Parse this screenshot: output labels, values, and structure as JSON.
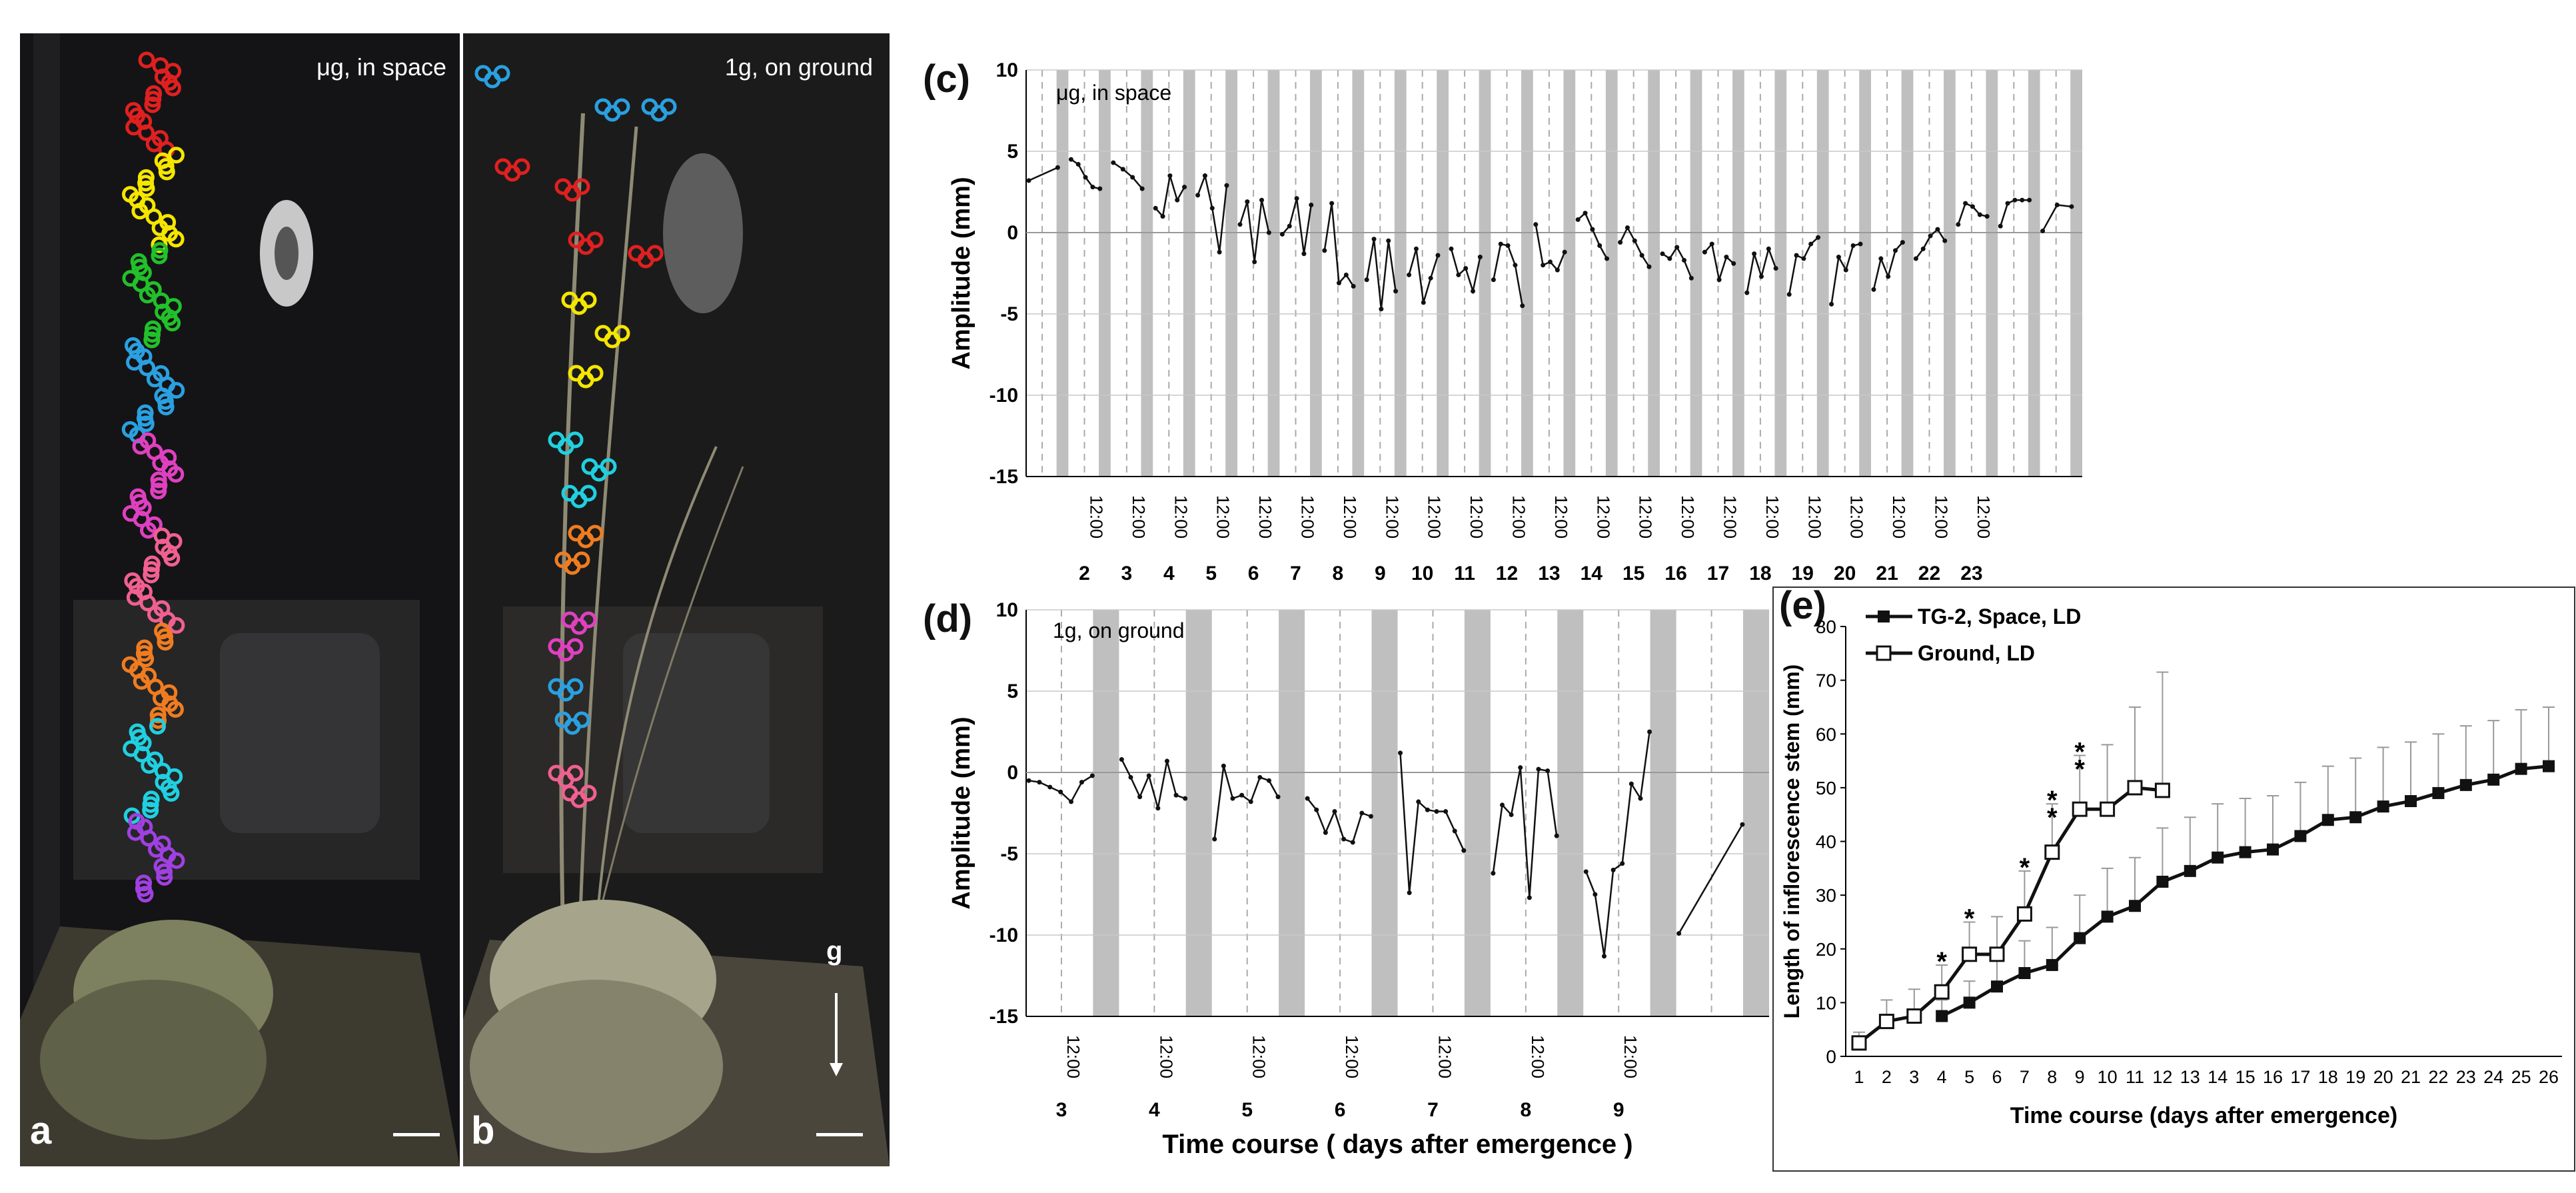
{
  "panels": {
    "a": {
      "letter": "a",
      "label": "μg, in space"
    },
    "b": {
      "letter": "b",
      "label": "1g, on ground",
      "gravity_label": "g"
    },
    "c": {
      "letter": "(c)",
      "label": "μg, in space"
    },
    "d": {
      "letter": "(d)",
      "label": "1g, on ground"
    },
    "e": {
      "letter": "(e)"
    }
  },
  "chart_data": [
    {
      "id": "c",
      "type": "line",
      "title": "",
      "ylabel": "Amplitude (mm)",
      "xlabel": "",
      "ylim": [
        -15,
        10
      ],
      "yticks": [
        10,
        5,
        0,
        -5,
        -10,
        -15
      ],
      "day_labels": [
        "2",
        "3",
        "4",
        "5",
        "6",
        "7",
        "8",
        "9",
        "10",
        "11",
        "12",
        "13",
        "14",
        "15",
        "16",
        "17",
        "18",
        "19",
        "20",
        "21",
        "22",
        "23"
      ],
      "time_label": "12:00",
      "dark_bands": true,
      "series": [
        {
          "values": [
            [
              3.2,
              4.0
            ],
            [
              4.5,
              4.2,
              3.4,
              2.8,
              2.7
            ],
            [
              4.3,
              3.9,
              3.4,
              2.7
            ],
            [
              1.5,
              1.0,
              3.5,
              2.0,
              2.8
            ],
            [
              2.3,
              3.5,
              1.5,
              -1.2,
              2.9
            ],
            [
              0.5,
              1.9,
              -1.8,
              2.0,
              0.0
            ],
            [
              -0.1,
              0.4,
              2.1,
              -1.3,
              1.7
            ],
            [
              -1.1,
              1.8,
              -3.1,
              -2.6,
              -3.3
            ],
            [
              -2.9,
              -0.4,
              -4.7,
              -0.5,
              -3.6
            ],
            [
              -2.6,
              -1.0,
              -4.3,
              -2.8,
              -1.4
            ],
            [
              -1.0,
              -2.6,
              -2.2,
              -3.6,
              -1.5
            ],
            [
              -2.9,
              -0.7,
              -0.8,
              -2.0,
              -4.5
            ],
            [
              0.5,
              -2.0,
              -1.8,
              -2.3,
              -1.2
            ],
            [
              0.8,
              1.2,
              0.2,
              -0.8,
              -1.6
            ],
            [
              -0.6,
              0.3,
              -0.5,
              -1.4,
              -2.1
            ],
            [
              -1.3,
              -1.6,
              -0.9,
              -1.7,
              -2.8
            ],
            [
              -1.2,
              -0.7,
              -2.9,
              -1.5,
              -1.9
            ],
            [
              -3.7,
              -1.3,
              -2.7,
              -1.0,
              -2.2
            ],
            [
              -3.8,
              -1.4,
              -1.6,
              -0.7,
              -0.3
            ],
            [
              -4.4,
              -1.5,
              -2.3,
              -0.8,
              -0.7
            ],
            [
              -3.5,
              -1.6,
              -2.7,
              -1.1,
              -0.6
            ],
            [
              -1.6,
              -1.0,
              -0.2,
              0.2,
              -0.5
            ],
            [
              0.5,
              1.8,
              1.6,
              1.1,
              1.0
            ],
            [
              0.4,
              1.8,
              2.0,
              2.0,
              2.0
            ],
            [
              0.1,
              1.7,
              1.6
            ]
          ]
        }
      ]
    },
    {
      "id": "d",
      "type": "line",
      "title": "",
      "ylabel": "Amplitude (mm)",
      "xlabel": "Time course ( days after emergence )",
      "ylim": [
        -15,
        10
      ],
      "yticks": [
        10,
        5,
        0,
        -5,
        -10,
        -15
      ],
      "day_labels": [
        "3",
        "4",
        "5",
        "6",
        "7",
        "8",
        "9"
      ],
      "time_label": "12:00",
      "dark_bands": true,
      "series": [
        {
          "values": [
            [
              -0.5,
              -0.6,
              -0.9,
              -1.2,
              -1.8,
              -0.6,
              -0.2
            ],
            [
              0.8,
              -0.3,
              -1.5,
              -0.2,
              -2.2,
              0.7,
              -1.4,
              -1.6
            ],
            [
              -4.1,
              0.4,
              -1.6,
              -1.4,
              -1.8,
              -0.3,
              -0.5,
              -1.5
            ],
            [
              -1.6,
              -2.3,
              -3.7,
              -2.4,
              -4.1,
              -4.3,
              -2.5,
              -2.7
            ],
            [
              1.2,
              -7.4,
              -1.8,
              -2.3,
              -2.4,
              -2.4,
              -3.6,
              -4.8
            ],
            [
              -6.2,
              -2.0,
              -2.6,
              0.3,
              -7.7,
              0.2,
              0.1,
              -3.9
            ],
            [
              -6.1,
              -7.5,
              -11.3,
              -6.0,
              -5.6,
              -0.7,
              -1.6,
              2.5
            ],
            [
              -9.9,
              -3.2
            ]
          ]
        }
      ]
    },
    {
      "id": "e",
      "type": "line",
      "title": "",
      "ylabel": "Length of inflorescence stem (mm)",
      "xlabel": "Time  course (days after emergence)",
      "ylim": [
        0,
        80
      ],
      "yticks": [
        0,
        10,
        20,
        30,
        40,
        50,
        60,
        70,
        80
      ],
      "x": [
        1,
        2,
        3,
        4,
        5,
        6,
        7,
        8,
        9,
        10,
        11,
        12,
        13,
        14,
        15,
        16,
        17,
        18,
        19,
        20,
        21,
        22,
        23,
        24,
        25,
        26
      ],
      "legend_position": "top-left",
      "series": [
        {
          "name": "TG-2, Space, LD",
          "marker": "filled-square",
          "x": [
            4,
            5,
            6,
            7,
            8,
            9,
            10,
            11,
            12,
            13,
            14,
            15,
            16,
            17,
            18,
            19,
            20,
            21,
            22,
            23,
            24,
            25,
            26
          ],
          "values": [
            7.5,
            10,
            13,
            15.5,
            17,
            22,
            26,
            28,
            32.5,
            34.5,
            37,
            38,
            38.5,
            41,
            44,
            44.5,
            46.5,
            47.5,
            49,
            50.5,
            51.5,
            53.5,
            54
          ],
          "errors": [
            3,
            4,
            5,
            6,
            7,
            8,
            9,
            9,
            10,
            10,
            10,
            10,
            10,
            10,
            10,
            11,
            11,
            11,
            11,
            11,
            11,
            11,
            11
          ]
        },
        {
          "name": "Ground, LD",
          "marker": "open-square",
          "x": [
            1,
            2,
            3,
            4,
            5,
            6,
            7,
            8,
            9,
            10,
            11,
            12
          ],
          "values": [
            2.5,
            6.5,
            7.5,
            12,
            19,
            19,
            26.5,
            38,
            46,
            46,
            50,
            49.5
          ],
          "errors": [
            2,
            4,
            5,
            5,
            6,
            7,
            8,
            9,
            10,
            12,
            15,
            22
          ]
        }
      ],
      "significance_markers": [
        {
          "x": 4,
          "label": "*"
        },
        {
          "x": 5,
          "label": "*"
        },
        {
          "x": 7,
          "label": "*"
        },
        {
          "x": 8,
          "label": "**"
        },
        {
          "x": 9,
          "label": "**"
        }
      ]
    }
  ]
}
